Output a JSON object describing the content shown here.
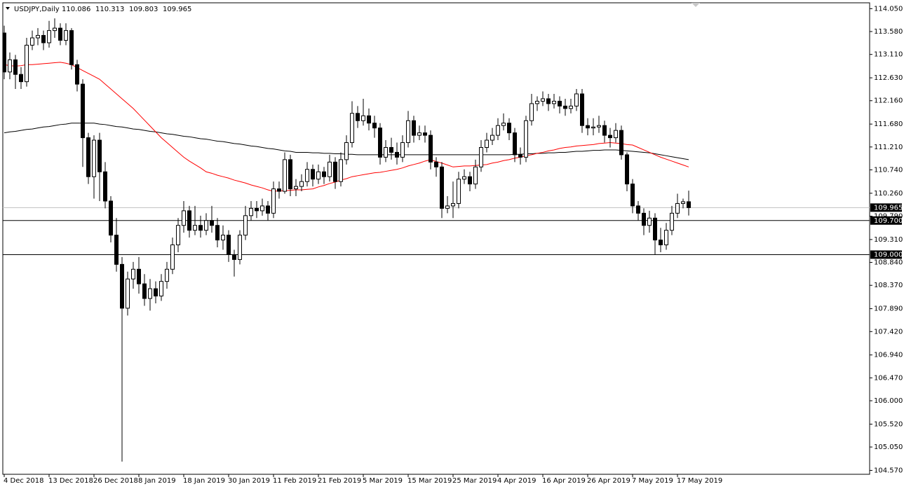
{
  "chart_data": {
    "type": "candlestick",
    "title": "USDJPY,Daily",
    "header_values": [
      110.086,
      110.313,
      109.803,
      109.965
    ],
    "ylim": [
      104.49,
      114.17
    ],
    "yticks": [
      {
        "value": 114.05,
        "label": "114.050"
      },
      {
        "value": 113.58,
        "label": "113.580"
      },
      {
        "value": 113.11,
        "label": "113.110"
      },
      {
        "value": 112.63,
        "label": "112.630"
      },
      {
        "value": 112.16,
        "label": "112.160"
      },
      {
        "value": 111.68,
        "label": "111.680"
      },
      {
        "value": 111.21,
        "label": "111.210"
      },
      {
        "value": 110.74,
        "label": "110.740"
      },
      {
        "value": 110.26,
        "label": "110.260"
      },
      {
        "value": 109.79,
        "label": "109.790"
      },
      {
        "value": 109.31,
        "label": "109.310"
      },
      {
        "value": 108.84,
        "label": "108.840"
      },
      {
        "value": 108.37,
        "label": "108.370"
      },
      {
        "value": 107.89,
        "label": "107.890"
      },
      {
        "value": 107.42,
        "label": "107.420"
      },
      {
        "value": 106.94,
        "label": "106.940"
      },
      {
        "value": 106.47,
        "label": "106.470"
      },
      {
        "value": 106.0,
        "label": "106.000"
      },
      {
        "value": 105.52,
        "label": "105.520"
      },
      {
        "value": 105.05,
        "label": "105.050"
      },
      {
        "value": 104.57,
        "label": "104.570"
      }
    ],
    "last_price": 109.965,
    "hlines": [
      {
        "value": 109.7,
        "label": "109.700"
      },
      {
        "value": 109.0,
        "label": "109.000"
      }
    ],
    "categories": [
      "4 Dec 2018",
      null,
      null,
      null,
      null,
      null,
      null,
      null,
      "13 Dec 2018",
      null,
      null,
      null,
      null,
      null,
      null,
      null,
      "26 Dec 2018",
      null,
      null,
      null,
      null,
      null,
      null,
      null,
      "8 Jan 2019",
      null,
      null,
      null,
      null,
      null,
      null,
      null,
      "18 Jan 2019",
      null,
      null,
      null,
      null,
      null,
      null,
      null,
      "30 Jan 2019",
      null,
      null,
      null,
      null,
      null,
      null,
      null,
      "11 Feb 2019",
      null,
      null,
      null,
      null,
      null,
      null,
      null,
      "21 Feb 2019",
      null,
      null,
      null,
      null,
      null,
      null,
      null,
      "5 Mar 2019",
      null,
      null,
      null,
      null,
      null,
      null,
      null,
      "15 Mar 2019",
      null,
      null,
      null,
      null,
      null,
      null,
      null,
      "25 Mar 2019",
      null,
      null,
      null,
      null,
      null,
      null,
      null,
      "4 Apr 2019",
      null,
      null,
      null,
      null,
      null,
      null,
      null,
      "16 Apr 2019",
      null,
      null,
      null,
      null,
      null,
      null,
      null,
      "26 Apr 2019",
      null,
      null,
      null,
      null,
      null,
      null,
      null,
      "7 May 2019",
      null,
      null,
      null,
      null,
      null,
      null,
      null,
      "17 May 2019",
      null,
      null
    ],
    "open": [
      113.55,
      112.75,
      113.0,
      112.7,
      112.55,
      113.3,
      113.45,
      113.5,
      113.35,
      113.6,
      113.65,
      113.4,
      113.6,
      112.9,
      112.5,
      111.4,
      110.6,
      111.35,
      110.7,
      110.1,
      109.4,
      108.8,
      107.9,
      108.5,
      108.7,
      108.4,
      108.1,
      108.3,
      108.15,
      108.45,
      108.7,
      109.2,
      109.6,
      109.9,
      109.5,
      109.6,
      109.5,
      109.7,
      109.6,
      109.3,
      109.4,
      109.0,
      108.9,
      109.4,
      109.8,
      109.95,
      109.9,
      110.0,
      109.85,
      110.35,
      110.3,
      110.95,
      110.35,
      110.4,
      110.5,
      110.75,
      110.55,
      110.7,
      110.6,
      110.9,
      110.5,
      110.95,
      111.3,
      111.9,
      111.75,
      111.85,
      111.7,
      111.6,
      111.0,
      111.2,
      111.1,
      111.0,
      111.3,
      111.75,
      111.45,
      111.5,
      111.45,
      110.9,
      110.8,
      109.95,
      110.0,
      110.05,
      110.55,
      110.6,
      110.45,
      110.8,
      111.2,
      111.35,
      111.45,
      111.65,
      111.7,
      111.5,
      111.05,
      111.0,
      111.75,
      112.1,
      112.15,
      112.2,
      112.1,
      112.15,
      112.05,
      112.0,
      112.05,
      112.3,
      111.65,
      111.6,
      111.62,
      111.65,
      111.45,
      111.4,
      111.55,
      111.05,
      110.45,
      110.0,
      109.85,
      109.6,
      109.75,
      109.3,
      109.2,
      109.5,
      109.85,
      110.05,
      110.086
    ],
    "high": [
      113.7,
      113.15,
      113.1,
      112.85,
      113.45,
      113.6,
      113.65,
      113.6,
      113.8,
      113.85,
      113.75,
      113.75,
      113.65,
      113.0,
      112.6,
      111.5,
      111.45,
      111.5,
      110.9,
      110.2,
      109.75,
      108.95,
      108.65,
      108.85,
      108.95,
      108.6,
      108.5,
      108.45,
      108.6,
      108.85,
      109.35,
      109.75,
      110.1,
      110.0,
      110.0,
      109.8,
      109.85,
      110.0,
      109.75,
      109.6,
      109.5,
      109.1,
      109.5,
      110.0,
      110.1,
      110.1,
      110.15,
      110.1,
      110.5,
      110.5,
      111.1,
      111.05,
      110.55,
      110.65,
      110.9,
      110.85,
      110.85,
      110.8,
      111.05,
      111.0,
      111.1,
      111.45,
      112.15,
      112.05,
      112.2,
      112.0,
      111.85,
      111.7,
      111.35,
      111.4,
      111.3,
      111.45,
      111.95,
      111.85,
      111.65,
      111.65,
      111.55,
      111.0,
      110.9,
      110.2,
      110.5,
      110.7,
      110.75,
      110.7,
      110.95,
      111.35,
      111.5,
      111.6,
      111.8,
      111.9,
      111.8,
      111.6,
      111.2,
      111.85,
      112.3,
      112.25,
      112.35,
      112.3,
      112.3,
      112.25,
      112.2,
      112.2,
      112.4,
      112.4,
      111.8,
      111.8,
      111.85,
      111.75,
      111.6,
      111.7,
      111.65,
      111.1,
      110.55,
      110.1,
      109.95,
      109.9,
      109.85,
      109.55,
      109.65,
      110.0,
      110.25,
      110.15,
      110.313
    ],
    "low": [
      112.6,
      112.6,
      112.4,
      112.4,
      112.45,
      113.2,
      113.3,
      113.2,
      113.25,
      113.45,
      113.3,
      113.3,
      112.8,
      112.35,
      110.8,
      110.45,
      110.15,
      110.1,
      109.95,
      109.25,
      108.65,
      104.75,
      107.75,
      108.3,
      108.2,
      107.95,
      107.85,
      108.0,
      108.05,
      108.3,
      108.6,
      109.05,
      109.45,
      109.35,
      109.4,
      109.35,
      109.4,
      109.45,
      109.15,
      109.1,
      108.85,
      108.55,
      108.8,
      109.3,
      109.7,
      109.75,
      109.8,
      109.7,
      109.75,
      110.15,
      110.25,
      110.2,
      110.2,
      110.3,
      110.4,
      110.4,
      110.45,
      110.45,
      110.5,
      110.35,
      110.4,
      110.85,
      111.2,
      111.6,
      111.65,
      111.55,
      111.4,
      110.85,
      110.9,
      110.95,
      110.85,
      110.9,
      111.2,
      111.3,
      111.35,
      111.3,
      110.75,
      110.6,
      109.75,
      109.85,
      109.75,
      109.95,
      110.45,
      110.3,
      110.35,
      110.7,
      111.1,
      111.25,
      111.35,
      111.55,
      111.35,
      110.9,
      110.85,
      110.9,
      111.65,
      111.95,
      112.05,
      111.95,
      112.0,
      111.9,
      111.85,
      111.9,
      111.95,
      111.5,
      111.45,
      111.45,
      111.5,
      111.3,
      111.2,
      111.3,
      110.95,
      110.3,
      109.85,
      109.7,
      109.4,
      109.45,
      109.0,
      109.05,
      109.1,
      109.4,
      109.75,
      109.95,
      109.803
    ],
    "close": [
      112.75,
      113.0,
      112.7,
      112.55,
      113.3,
      113.45,
      113.5,
      113.35,
      113.6,
      113.65,
      113.4,
      113.6,
      112.9,
      112.5,
      111.4,
      110.6,
      111.35,
      110.7,
      110.1,
      109.4,
      108.8,
      107.9,
      108.5,
      108.7,
      108.4,
      108.1,
      108.3,
      108.15,
      108.45,
      108.7,
      109.2,
      109.6,
      109.9,
      109.5,
      109.6,
      109.5,
      109.7,
      109.6,
      109.3,
      109.4,
      109.0,
      108.9,
      109.4,
      109.8,
      109.95,
      109.9,
      110.0,
      109.85,
      110.35,
      110.3,
      110.95,
      110.35,
      110.4,
      110.5,
      110.75,
      110.55,
      110.7,
      110.6,
      110.9,
      110.5,
      110.95,
      111.3,
      111.9,
      111.75,
      111.85,
      111.7,
      111.6,
      111.0,
      111.2,
      111.1,
      111.0,
      111.3,
      111.75,
      111.45,
      111.5,
      111.45,
      110.9,
      110.8,
      109.95,
      110.0,
      110.05,
      110.55,
      110.6,
      110.45,
      110.8,
      111.2,
      111.35,
      111.45,
      111.65,
      111.7,
      111.5,
      111.05,
      111.0,
      111.75,
      112.1,
      112.15,
      112.2,
      112.1,
      112.15,
      112.05,
      112.0,
      112.05,
      112.3,
      111.65,
      111.6,
      111.62,
      111.65,
      111.45,
      111.4,
      111.55,
      111.05,
      110.45,
      110.0,
      109.85,
      109.6,
      109.75,
      109.3,
      109.2,
      109.5,
      109.85,
      110.05,
      110.086,
      109.965
    ],
    "bull_color": "#ffffff",
    "bear_color": "#000000",
    "lines": [
      {
        "color": "#000000",
        "values": [
          111.5,
          111.52,
          111.53,
          111.55,
          111.57,
          111.58,
          111.6,
          111.62,
          111.63,
          111.65,
          111.67,
          111.68,
          111.7,
          111.7,
          111.7,
          111.7,
          111.7,
          111.68,
          111.67,
          111.65,
          111.63,
          111.62,
          111.6,
          111.58,
          111.57,
          111.55,
          111.53,
          111.52,
          111.5,
          111.48,
          111.47,
          111.45,
          111.43,
          111.42,
          111.4,
          111.38,
          111.37,
          111.35,
          111.33,
          111.32,
          111.3,
          111.28,
          111.27,
          111.25,
          111.23,
          111.22,
          111.2,
          111.18,
          111.17,
          111.15,
          111.13,
          111.12,
          111.1,
          111.1,
          111.1,
          111.09,
          111.09,
          111.08,
          111.08,
          111.07,
          111.07,
          111.06,
          111.06,
          111.05,
          111.05,
          111.05,
          111.05,
          111.05,
          111.05,
          111.05,
          111.05,
          111.05,
          111.05,
          111.05,
          111.05,
          111.05,
          111.05,
          111.05,
          111.05,
          111.05,
          111.05,
          111.05,
          111.05,
          111.05,
          111.05,
          111.05,
          111.05,
          111.05,
          111.05,
          111.05,
          111.05,
          111.06,
          111.06,
          111.07,
          111.07,
          111.08,
          111.08,
          111.09,
          111.09,
          111.1,
          111.1,
          111.11,
          111.12,
          111.12,
          111.13,
          111.14,
          111.14,
          111.15,
          111.15,
          111.15,
          111.14,
          111.13,
          111.12,
          111.11,
          111.1,
          111.09,
          111.07,
          111.05,
          111.03,
          111.01,
          110.99,
          110.97,
          110.95
        ]
      },
      {
        "color": "#ff0000",
        "values": [
          112.9,
          112.88,
          112.87,
          112.88,
          112.9,
          112.9,
          112.91,
          112.92,
          112.93,
          112.94,
          112.95,
          112.93,
          112.9,
          112.84,
          112.78,
          112.72,
          112.66,
          112.6,
          112.5,
          112.4,
          112.3,
          112.2,
          112.1,
          112.0,
          111.88,
          111.76,
          111.64,
          111.52,
          111.4,
          111.3,
          111.2,
          111.1,
          111.0,
          110.92,
          110.85,
          110.78,
          110.7,
          110.67,
          110.63,
          110.6,
          110.57,
          110.53,
          110.5,
          110.47,
          110.43,
          110.4,
          110.37,
          110.33,
          110.3,
          110.31,
          110.31,
          110.32,
          110.33,
          110.33,
          110.34,
          110.35,
          110.39,
          110.42,
          110.46,
          110.49,
          110.53,
          110.56,
          110.6,
          110.62,
          110.64,
          110.66,
          110.68,
          110.69,
          110.71,
          110.73,
          110.75,
          110.78,
          110.82,
          110.85,
          110.88,
          110.92,
          110.95,
          110.91,
          110.88,
          110.84,
          110.8,
          110.81,
          110.82,
          110.82,
          110.83,
          110.84,
          110.85,
          110.88,
          110.9,
          110.93,
          110.95,
          110.98,
          111.0,
          111.03,
          111.05,
          111.08,
          111.1,
          111.13,
          111.15,
          111.18,
          111.2,
          111.21,
          111.23,
          111.24,
          111.25,
          111.26,
          111.28,
          111.29,
          111.3,
          111.29,
          111.28,
          111.26,
          111.25,
          111.2,
          111.15,
          111.1,
          111.05,
          111.0,
          110.96,
          110.92,
          110.88,
          110.84,
          110.8
        ]
      }
    ]
  }
}
